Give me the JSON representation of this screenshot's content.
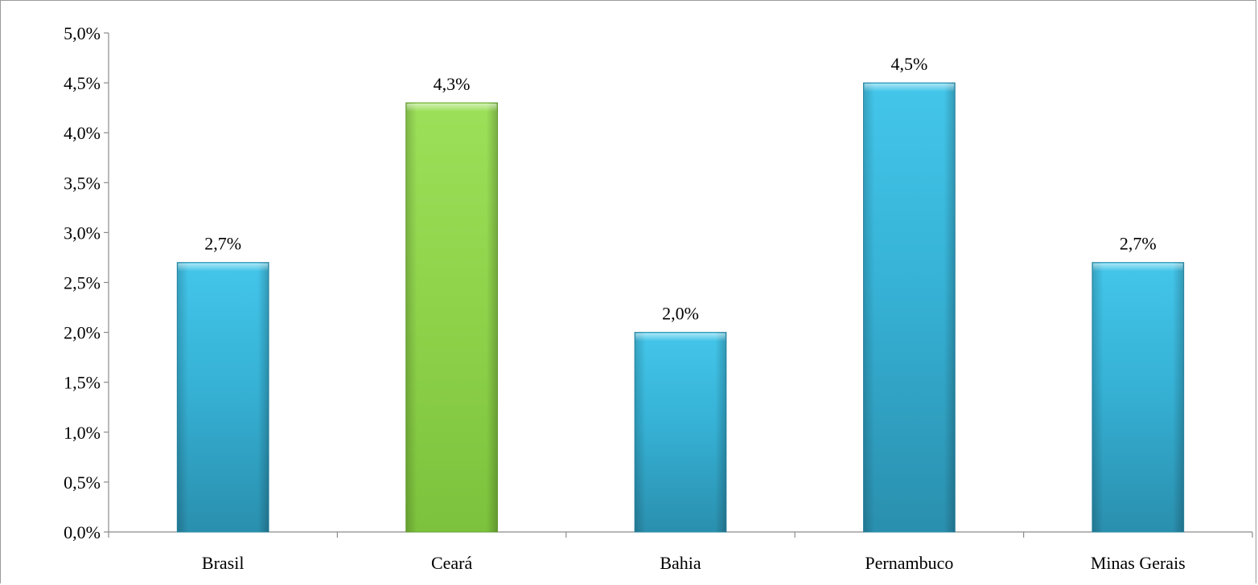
{
  "chart_data": {
    "type": "bar",
    "categories": [
      "Brasil",
      "Ceará",
      "Bahia",
      "Pernambuco",
      "Minas Gerais"
    ],
    "values": [
      2.7,
      4.3,
      2.0,
      4.5,
      2.7
    ],
    "value_labels": [
      "2,7%",
      "4,3%",
      "2,0%",
      "4,5%",
      "2,7%"
    ],
    "ylim": [
      0,
      5.0
    ],
    "ytick_values": [
      0,
      0.5,
      1.0,
      1.5,
      2.0,
      2.5,
      3.0,
      3.5,
      4.0,
      4.5,
      5.0
    ],
    "ytick_labels": [
      "0,0%",
      "0,5%",
      "1,0%",
      "1,5%",
      "2,0%",
      "2,5%",
      "3,0%",
      "3,5%",
      "4,0%",
      "4,5%",
      "5,0%"
    ],
    "title": "",
    "xlabel": "",
    "ylabel": "",
    "grid": false,
    "legend": "none",
    "colors": {
      "default_bar": "#35b4d6",
      "highlight_bar": "#8ed24a",
      "highlight_index": 1
    }
  }
}
